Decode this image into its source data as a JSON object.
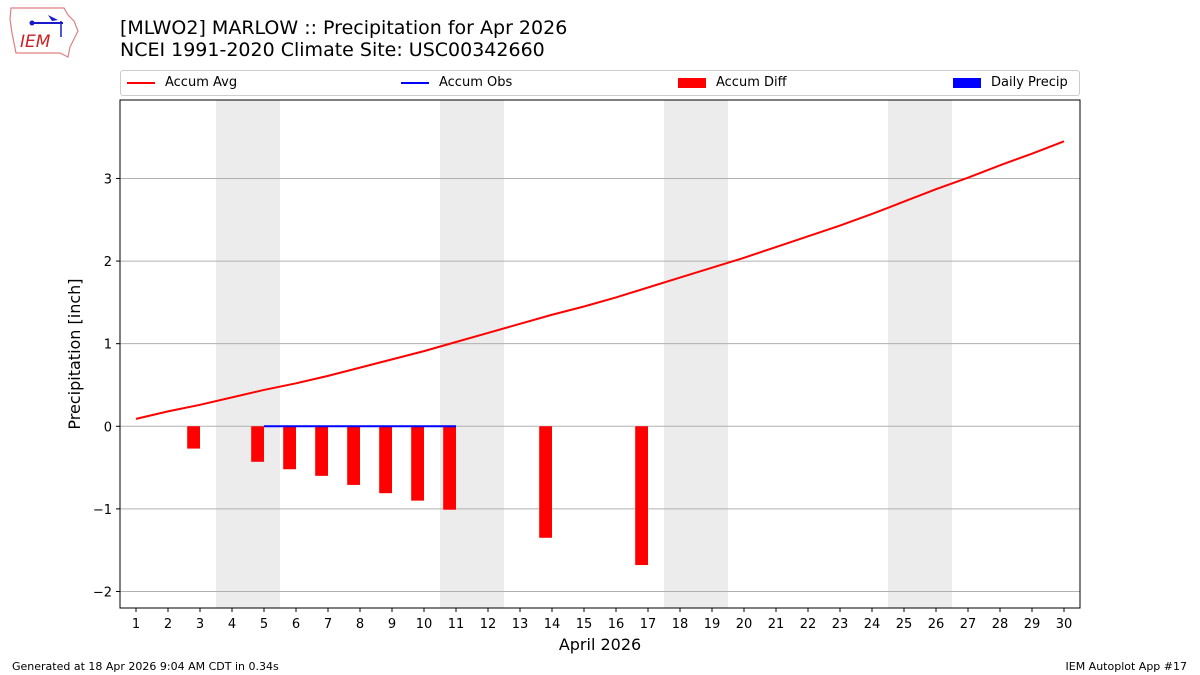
{
  "header": {
    "title": "[MLWO2] MARLOW :: Precipitation for Apr 2026",
    "subtitle": "NCEI 1991-2020 Climate Site: USC00342660"
  },
  "logo": {
    "text": "IEM"
  },
  "footer": {
    "left": "Generated at 18 Apr 2026 9:04 AM CDT in 0.34s",
    "right": "IEM Autoplot App #17"
  },
  "chart_data": {
    "type": "bar",
    "xlabel": "April 2026",
    "ylabel": "Precipitation [inch]",
    "xlim": [
      0.5,
      30.5
    ],
    "ylim": [
      -2.2,
      3.95
    ],
    "yticks": [
      -2,
      -1,
      0,
      1,
      2,
      3
    ],
    "ytick_labels": [
      "−2",
      "−1",
      "0",
      "1",
      "2",
      "3"
    ],
    "x": [
      1,
      2,
      3,
      4,
      5,
      6,
      7,
      8,
      9,
      10,
      11,
      12,
      13,
      14,
      15,
      16,
      17,
      18,
      19,
      20,
      21,
      22,
      23,
      24,
      25,
      26,
      27,
      28,
      29,
      30
    ],
    "grid": "y",
    "weekend_shading": [
      [
        3.5,
        5.5
      ],
      [
        10.5,
        12.5
      ],
      [
        17.5,
        19.5
      ],
      [
        24.5,
        26.5
      ]
    ],
    "legend_position": "top",
    "legend": [
      "Accum Avg",
      "Accum Obs",
      "Accum Diff",
      "Daily Precip"
    ],
    "colors": {
      "avg": "#ff0000",
      "obs": "#0000ff",
      "diff": "#ff0000",
      "daily": "#0000ff",
      "shade": "#ececec",
      "grid": "#b0b0b0"
    },
    "series": [
      {
        "name": "Accum Avg",
        "type": "line",
        "x": [
          1,
          2,
          3,
          4,
          5,
          6,
          7,
          8,
          9,
          10,
          11,
          12,
          13,
          14,
          15,
          16,
          17,
          18,
          19,
          20,
          21,
          22,
          23,
          24,
          25,
          26,
          27,
          28,
          29,
          30
        ],
        "values": [
          0.09,
          0.18,
          0.26,
          0.35,
          0.44,
          0.52,
          0.61,
          0.71,
          0.81,
          0.91,
          1.02,
          1.13,
          1.24,
          1.35,
          1.45,
          1.56,
          1.68,
          1.8,
          1.92,
          2.04,
          2.17,
          2.3,
          2.43,
          2.57,
          2.72,
          2.87,
          3.01,
          3.16,
          3.3,
          3.45
        ]
      },
      {
        "name": "Accum Obs",
        "type": "line",
        "x": [
          5,
          6,
          7,
          8,
          9,
          10,
          11
        ],
        "values": [
          0,
          0,
          0,
          0,
          0,
          0,
          0
        ]
      },
      {
        "name": "Accum Diff",
        "type": "bar",
        "x": [
          3,
          5,
          6,
          7,
          8,
          9,
          10,
          11,
          14,
          17
        ],
        "values": [
          -0.27,
          -0.43,
          -0.52,
          -0.6,
          -0.71,
          -0.81,
          -0.9,
          -1.01,
          -1.35,
          -1.68
        ]
      },
      {
        "name": "Daily Precip",
        "type": "bar",
        "x": [],
        "values": []
      }
    ]
  }
}
